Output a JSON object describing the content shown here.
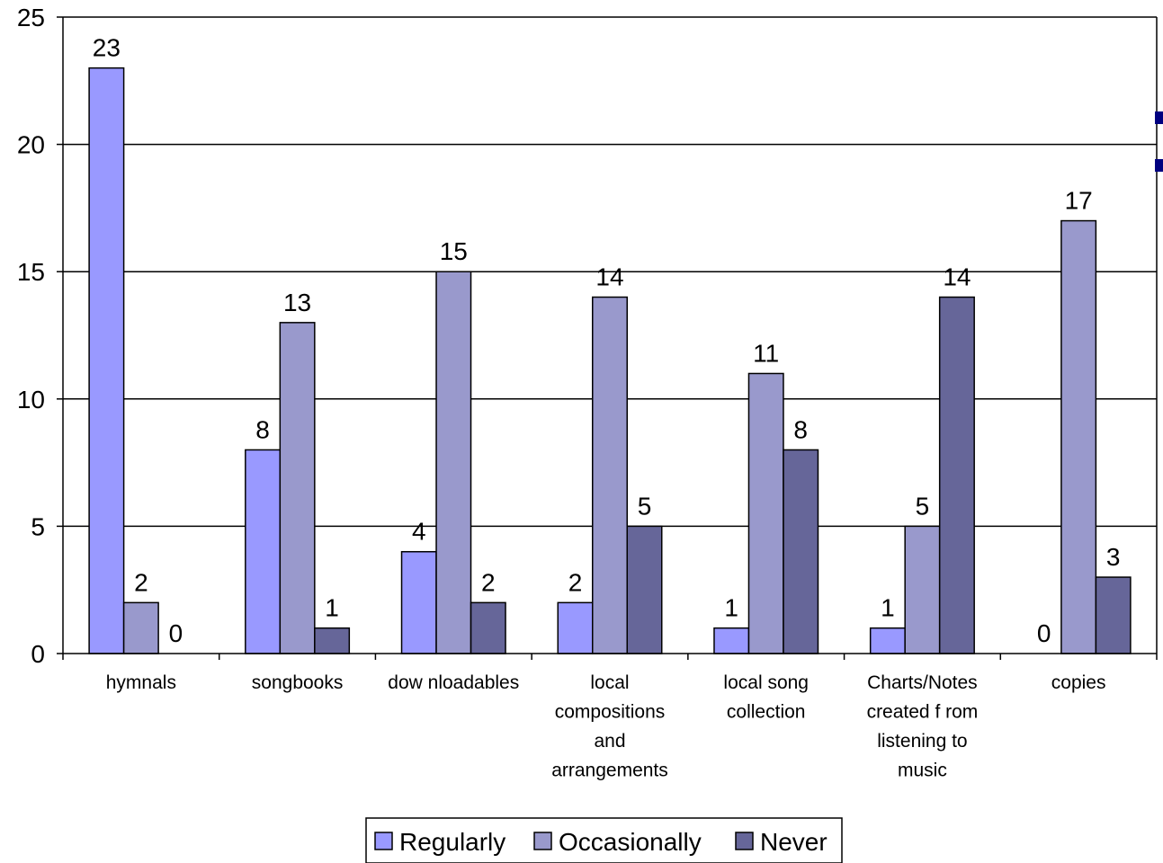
{
  "chart_data": {
    "type": "bar",
    "categories": [
      [
        "hymnals"
      ],
      [
        "songbooks"
      ],
      [
        "dow nloadables"
      ],
      [
        "local",
        "compositions",
        "and",
        "arrangements"
      ],
      [
        "local song",
        "collection"
      ],
      [
        "Charts/Notes",
        "created f rom",
        "listening to",
        "music"
      ],
      [
        "copies"
      ]
    ],
    "series": [
      {
        "name": "Regularly",
        "color": "#9999ff",
        "values": [
          23,
          8,
          4,
          2,
          1,
          1,
          0
        ]
      },
      {
        "name": "Occasionally",
        "color": "#9999cc",
        "values": [
          2,
          13,
          15,
          14,
          11,
          5,
          17
        ]
      },
      {
        "name": "Never",
        "color": "#666699",
        "values": [
          0,
          1,
          2,
          5,
          8,
          14,
          3
        ]
      }
    ],
    "yticks": [
      "0",
      "5",
      "10",
      "15",
      "20",
      "25"
    ],
    "ylim": [
      0,
      25
    ],
    "grid": true,
    "legend_position": "bottom",
    "data_labels": true,
    "marker_color": "#000080"
  }
}
